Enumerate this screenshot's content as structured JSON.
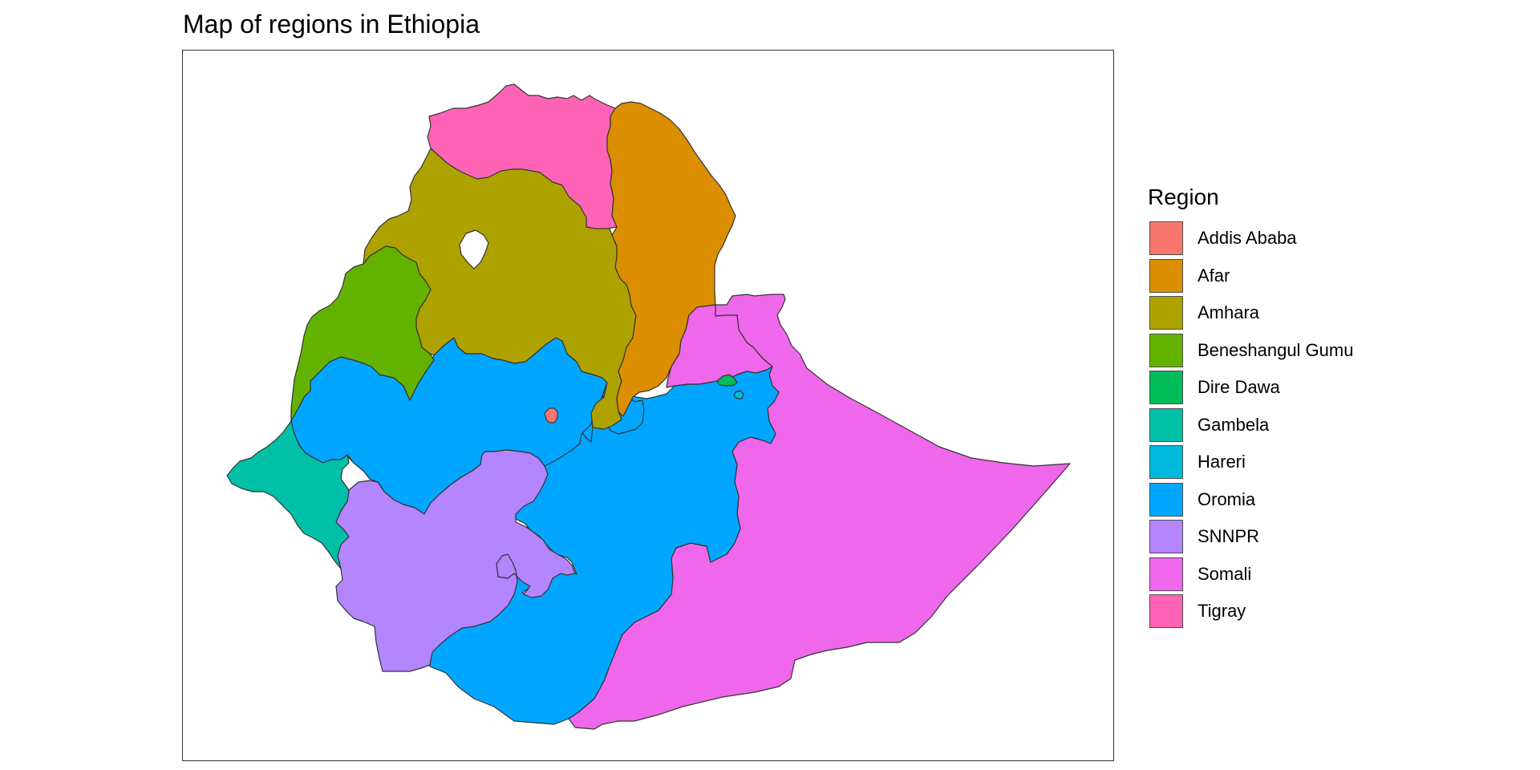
{
  "title": "Map of regions in Ethiopia",
  "legend": {
    "title": "Region",
    "position": "right",
    "items": [
      {
        "label": "Addis Ababa",
        "color": "#F8766D"
      },
      {
        "label": "Afar",
        "color": "#DB8E00"
      },
      {
        "label": "Amhara",
        "color": "#AEA200"
      },
      {
        "label": "Beneshangul Gumu",
        "color": "#64B200"
      },
      {
        "label": "Dire Dawa",
        "color": "#00BD5C"
      },
      {
        "label": "Gambela",
        "color": "#00C1A7"
      },
      {
        "label": "Hareri",
        "color": "#00BADE"
      },
      {
        "label": "Oromia",
        "color": "#00A6FF"
      },
      {
        "label": "SNNPR",
        "color": "#B385FF"
      },
      {
        "label": "Somali",
        "color": "#EF67EB"
      },
      {
        "label": "Tigray",
        "color": "#FF63B6"
      }
    ]
  },
  "map": {
    "type": "choropleth",
    "country": "Ethiopia",
    "fill_variable": "Region",
    "border_color": "#333333",
    "background": "#ffffff",
    "grid": false,
    "axes": false
  }
}
